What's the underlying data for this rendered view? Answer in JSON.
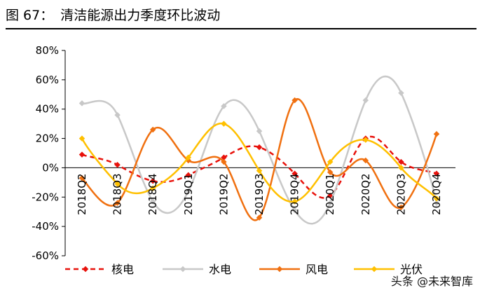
{
  "figure": {
    "label": "图 67：",
    "title": "清洁能源出力季度环比波动"
  },
  "watermark": "头条 @未来智库",
  "chart_data": {
    "type": "line",
    "title": "清洁能源出力季度环比波动",
    "x": [
      "2018Q2",
      "2018Q3",
      "2018Q4",
      "2019Q1",
      "2019Q2",
      "2019Q3",
      "2019Q4",
      "2020Q1",
      "2020Q2",
      "2020Q3",
      "2020Q4"
    ],
    "y_ticks": [
      "80%",
      "60%",
      "40%",
      "20%",
      "0%",
      "-20%",
      "-40%",
      "-60%"
    ],
    "ylim": [
      -0.6,
      0.8
    ],
    "smooth": true,
    "legend_position": "bottom",
    "grid": false,
    "series": [
      {
        "name": "核电",
        "color": "#E8120C",
        "dashed": true,
        "values": [
          0.09,
          0.02,
          -0.09,
          -0.05,
          0.07,
          0.14,
          -0.04,
          -0.19,
          0.2,
          0.04,
          -0.04
        ]
      },
      {
        "name": "水电",
        "color": "#C8C8C8",
        "dashed": false,
        "values": [
          0.44,
          0.36,
          -0.23,
          -0.16,
          0.42,
          0.25,
          -0.29,
          -0.24,
          0.46,
          0.51,
          -0.24
        ]
      },
      {
        "name": "风电",
        "color": "#F07010",
        "dashed": false,
        "values": [
          -0.07,
          -0.24,
          0.26,
          0.05,
          0.04,
          -0.34,
          0.46,
          -0.03,
          0.05,
          -0.27,
          0.23
        ]
      },
      {
        "name": "光伏",
        "color": "#FFC000",
        "dashed": false,
        "values": [
          0.2,
          -0.11,
          -0.14,
          0.07,
          0.3,
          -0.02,
          -0.23,
          0.04,
          0.19,
          0.0,
          -0.21
        ]
      }
    ]
  }
}
